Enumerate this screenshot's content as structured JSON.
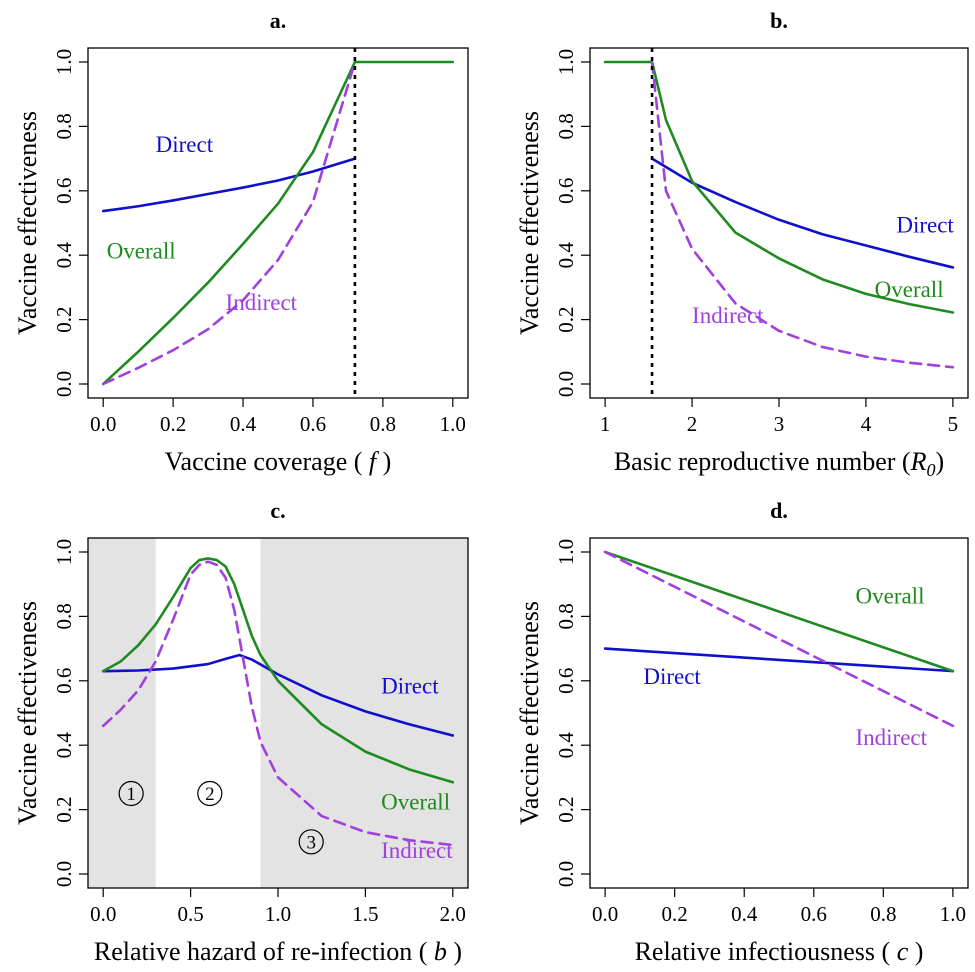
{
  "chart_data": [
    {
      "panel": "a.",
      "type": "line",
      "xlabel_parts": [
        "Vaccine coverage (",
        "f",
        ")"
      ],
      "ylabel": "Vaccine effectiveness",
      "xlim": [
        0,
        1
      ],
      "ylim": [
        0,
        1
      ],
      "xticks": [
        "0.0",
        "0.2",
        "0.4",
        "0.6",
        "0.8",
        "1.0"
      ],
      "yticks": [
        "0.0",
        "0.2",
        "0.4",
        "0.6",
        "0.8",
        "1.0"
      ],
      "vline": 0.72,
      "series": [
        {
          "name": "Direct",
          "color": "#1010cc",
          "dash": false,
          "x": [
            0,
            0.1,
            0.2,
            0.3,
            0.4,
            0.5,
            0.6,
            0.72
          ],
          "y": [
            0.537,
            0.552,
            0.57,
            0.59,
            0.61,
            0.632,
            0.66,
            0.7
          ]
        },
        {
          "name": "Overall",
          "color": "#1f8a1f",
          "dash": false,
          "x": [
            0,
            0.1,
            0.2,
            0.3,
            0.4,
            0.5,
            0.6,
            0.72,
            0.73,
            1.0
          ],
          "y": [
            0,
            0.1,
            0.205,
            0.315,
            0.435,
            0.56,
            0.72,
            1.0,
            1.0,
            1.0
          ]
        },
        {
          "name": "Indirect",
          "color": "#a040dd",
          "dash": true,
          "x": [
            0,
            0.1,
            0.2,
            0.3,
            0.4,
            0.5,
            0.6,
            0.72
          ],
          "y": [
            0,
            0.05,
            0.105,
            0.17,
            0.26,
            0.385,
            0.565,
            1.0
          ]
        }
      ],
      "annotations": [
        {
          "text": "Direct",
          "color": "#1010cc",
          "x": 0.15,
          "y": 0.72
        },
        {
          "text": "Overall",
          "color": "#1f8a1f",
          "x": 0.01,
          "y": 0.39
        },
        {
          "text": "Indirect",
          "color": "#a040dd",
          "x": 0.35,
          "y": 0.23
        }
      ]
    },
    {
      "panel": "b.",
      "type": "line",
      "xlabel_parts": [
        "Basic reproductive number (",
        "R",
        "0",
        ")"
      ],
      "ylabel": "Vaccine effectiveness",
      "xlim": [
        1,
        5
      ],
      "ylim": [
        0,
        1
      ],
      "xticks": [
        "1",
        "2",
        "3",
        "4",
        "5"
      ],
      "yticks": [
        "0.0",
        "0.2",
        "0.4",
        "0.6",
        "0.8",
        "1.0"
      ],
      "vline": 1.54,
      "series": [
        {
          "name": "Direct",
          "color": "#1010cc",
          "dash": false,
          "x": [
            1.54,
            2,
            2.5,
            3,
            3.5,
            4,
            4.5,
            5
          ],
          "y": [
            0.7,
            0.625,
            0.565,
            0.51,
            0.465,
            0.43,
            0.395,
            0.362
          ]
        },
        {
          "name": "Overall",
          "color": "#1f8a1f",
          "dash": false,
          "x": [
            1,
            1.5,
            1.54,
            1.7,
            2,
            2.5,
            3,
            3.5,
            4,
            4.5,
            5
          ],
          "y": [
            1,
            1,
            1.0,
            0.82,
            0.63,
            0.47,
            0.39,
            0.325,
            0.28,
            0.248,
            0.222
          ]
        },
        {
          "name": "Indirect",
          "color": "#a040dd",
          "dash": true,
          "x": [
            1.54,
            1.7,
            2,
            2.5,
            3,
            3.5,
            4,
            4.5,
            5
          ],
          "y": [
            1.0,
            0.6,
            0.42,
            0.25,
            0.165,
            0.115,
            0.085,
            0.066,
            0.052
          ]
        }
      ],
      "annotations": [
        {
          "text": "Direct",
          "color": "#1010cc",
          "x": 4.35,
          "y": 0.47
        },
        {
          "text": "Overall",
          "color": "#1f8a1f",
          "x": 4.1,
          "y": 0.27
        },
        {
          "text": "Indirect",
          "color": "#a040dd",
          "x": 2.0,
          "y": 0.19
        }
      ]
    },
    {
      "panel": "c.",
      "type": "line",
      "xlabel_parts": [
        "Relative hazard of re-infection (",
        "b",
        ")"
      ],
      "ylabel": "Vaccine effectiveness",
      "xlim": [
        0,
        2
      ],
      "ylim": [
        0,
        1
      ],
      "xticks": [
        "0.0",
        "0.5",
        "1.0",
        "1.5",
        "2.0"
      ],
      "yticks": [
        "0.0",
        "0.2",
        "0.4",
        "0.6",
        "0.8",
        "1.0"
      ],
      "shaded_regions": [
        [
          -0.1,
          0.3
        ],
        [
          0.9,
          2.1
        ]
      ],
      "regions": [
        {
          "label": "1",
          "x": 0.16,
          "y": 0.25
        },
        {
          "label": "2",
          "x": 0.61,
          "y": 0.25
        },
        {
          "label": "3",
          "x": 1.19,
          "y": 0.1
        }
      ],
      "series": [
        {
          "name": "Direct",
          "color": "#1010cc",
          "dash": false,
          "x": [
            0,
            0.2,
            0.4,
            0.6,
            0.7,
            0.78,
            0.85,
            1.0,
            1.25,
            1.5,
            1.75,
            2.0
          ],
          "y": [
            0.63,
            0.632,
            0.638,
            0.652,
            0.668,
            0.68,
            0.666,
            0.62,
            0.555,
            0.505,
            0.465,
            0.43
          ]
        },
        {
          "name": "Overall",
          "color": "#1f8a1f",
          "dash": false,
          "x": [
            0,
            0.1,
            0.2,
            0.3,
            0.4,
            0.5,
            0.55,
            0.6,
            0.65,
            0.7,
            0.75,
            0.8,
            0.85,
            0.9,
            1.0,
            1.25,
            1.5,
            1.75,
            2.0
          ],
          "y": [
            0.63,
            0.66,
            0.71,
            0.775,
            0.86,
            0.95,
            0.975,
            0.98,
            0.975,
            0.955,
            0.9,
            0.82,
            0.74,
            0.68,
            0.6,
            0.465,
            0.38,
            0.325,
            0.285
          ]
        },
        {
          "name": "Indirect",
          "color": "#a040dd",
          "dash": true,
          "x": [
            0,
            0.1,
            0.2,
            0.3,
            0.4,
            0.5,
            0.55,
            0.6,
            0.65,
            0.7,
            0.75,
            0.8,
            0.85,
            0.9,
            1.0,
            1.25,
            1.5,
            1.75,
            2.0
          ],
          "y": [
            0.46,
            0.51,
            0.57,
            0.66,
            0.79,
            0.93,
            0.96,
            0.97,
            0.96,
            0.92,
            0.82,
            0.67,
            0.52,
            0.41,
            0.3,
            0.18,
            0.13,
            0.105,
            0.09
          ]
        }
      ],
      "annotations": [
        {
          "text": "Direct",
          "color": "#1010cc",
          "x": 1.59,
          "y": 0.56
        },
        {
          "text": "Overall",
          "color": "#1f8a1f",
          "x": 1.59,
          "y": 0.2
        },
        {
          "text": "Indirect",
          "color": "#a040dd",
          "x": 1.59,
          "y": 0.05
        }
      ]
    },
    {
      "panel": "d.",
      "type": "line",
      "xlabel_parts": [
        "Relative infectiousness (",
        "c",
        ")"
      ],
      "ylabel": "Vaccine effectiveness",
      "xlim": [
        0,
        1
      ],
      "ylim": [
        0,
        1
      ],
      "xticks": [
        "0.0",
        "0.2",
        "0.4",
        "0.6",
        "0.8",
        "1.0"
      ],
      "yticks": [
        "0.0",
        "0.2",
        "0.4",
        "0.6",
        "0.8",
        "1.0"
      ],
      "series": [
        {
          "name": "Direct",
          "color": "#1010cc",
          "dash": false,
          "x": [
            0,
            1
          ],
          "y": [
            0.7,
            0.63
          ]
        },
        {
          "name": "Overall",
          "color": "#1f8a1f",
          "dash": false,
          "x": [
            0,
            1
          ],
          "y": [
            1.0,
            0.63
          ]
        },
        {
          "name": "Indirect",
          "color": "#a040dd",
          "dash": true,
          "x": [
            0,
            1
          ],
          "y": [
            1.0,
            0.46
          ]
        }
      ],
      "annotations": [
        {
          "text": "Overall",
          "color": "#1f8a1f",
          "x": 0.72,
          "y": 0.84
        },
        {
          "text": "Direct",
          "color": "#1010cc",
          "x": 0.11,
          "y": 0.59
        },
        {
          "text": "Indirect",
          "color": "#a040dd",
          "x": 0.72,
          "y": 0.4
        }
      ]
    }
  ]
}
